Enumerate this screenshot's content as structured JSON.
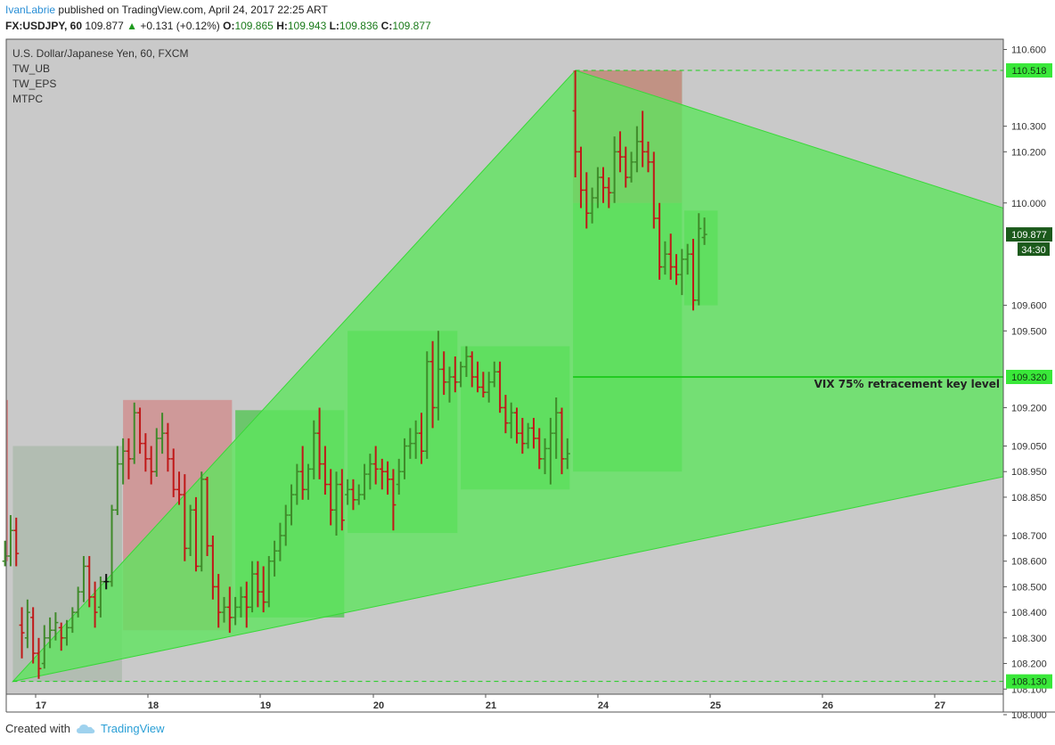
{
  "header": {
    "author": "IvanLabrie",
    "published": "published on TradingView.com, April 24, 2017 22:25 ART",
    "symbol": "FX:USDJPY, 60",
    "last": "109.877",
    "change": "+0.131 (+0.12%)",
    "o_label": "O:",
    "o": "109.865",
    "h_label": "H:",
    "h": "109.943",
    "l_label": "L:",
    "l": "109.836",
    "c_label": "C:",
    "c": "109.877"
  },
  "legend": {
    "title": "U.S. Dollar/Japanese Yen, 60, FXCM",
    "indicators": [
      "TW_UB",
      "TW_EPS",
      "MTPC"
    ]
  },
  "footer": {
    "created_with": "Created with",
    "brand": "TradingView"
  },
  "colors": {
    "bg_plot": "#c9c9c9",
    "bull": "#3f8a2a",
    "bear": "#c01818",
    "neutral": "#111111",
    "triangle": "#5ce65c",
    "box_green": "#4cc44c",
    "box_red": "#d08888",
    "box_gray": "#a9b8a9",
    "level_green": "#22cc22"
  },
  "chart_data": {
    "type": "candlestick",
    "ylim": [
      108.08,
      110.64
    ],
    "y_ticks": [
      "110.600",
      "110.300",
      "110.200",
      "110.000",
      "109.600",
      "109.500",
      "109.200",
      "109.050",
      "108.950",
      "108.850",
      "108.700",
      "108.600",
      "108.500",
      "108.400",
      "108.300",
      "108.200",
      "108.100",
      "108.000"
    ],
    "x_ticks": [
      "17",
      "18",
      "19",
      "20",
      "21",
      "24",
      "25",
      "26",
      "27"
    ],
    "price_labels": [
      {
        "value": 110.518,
        "text": "110.518"
      },
      {
        "value": 109.877,
        "text": "109.877"
      },
      {
        "value": 109.32,
        "text": "109.320"
      },
      {
        "value": 108.13,
        "text": "108.130"
      }
    ],
    "countdown": "34:30",
    "key_level": {
      "value": 109.32,
      "label": "VIX 75% retracement key level"
    },
    "triangle": [
      {
        "day": 16.75,
        "price": 108.13
      },
      {
        "day": 21.75,
        "price": 110.518
      },
      {
        "day": 28.55,
        "price": 109.98
      },
      {
        "day": 28.55,
        "price": 108.93
      }
    ],
    "boxes": [
      {
        "d0": 16.75,
        "d1": 17.72,
        "p0": 108.13,
        "p1": 109.05,
        "color": "gray"
      },
      {
        "d0": 17.73,
        "d1": 18.7,
        "p0": 108.33,
        "p1": 109.23,
        "color": "red"
      },
      {
        "d0": 18.73,
        "d1": 19.7,
        "p0": 108.38,
        "p1": 109.19,
        "color": "green"
      },
      {
        "d0": 19.73,
        "d1": 20.7,
        "p0": 108.71,
        "p1": 109.5,
        "color": "green"
      },
      {
        "d0": 20.73,
        "d1": 21.7,
        "p0": 108.88,
        "p1": 109.44,
        "color": "green"
      },
      {
        "d0": 21.73,
        "d1": 22.7,
        "p0": 108.95,
        "p1": 110.518,
        "color": "green"
      },
      {
        "d0": 21.73,
        "d1": 22.7,
        "p0": 110.518,
        "p1": 110.518,
        "color": "red_top"
      },
      {
        "d0": 22.72,
        "d1": 23.02,
        "p0": 109.6,
        "p1": 109.97,
        "color": "green"
      }
    ],
    "bars": [
      [
        16.68,
        108.6,
        108.68,
        108.58,
        108.62
      ],
      [
        16.73,
        108.62,
        108.78,
        108.58,
        108.72
      ],
      [
        16.78,
        108.72,
        108.77,
        108.58,
        108.63
      ],
      [
        16.83,
        108.35,
        108.42,
        108.22,
        108.32
      ],
      [
        16.88,
        108.3,
        108.45,
        108.26,
        108.4
      ],
      [
        16.93,
        108.38,
        108.42,
        108.2,
        108.24
      ],
      [
        16.98,
        108.24,
        108.3,
        108.14,
        108.18
      ],
      [
        17.03,
        108.2,
        108.35,
        108.18,
        108.3
      ],
      [
        17.08,
        108.3,
        108.38,
        108.26,
        108.33
      ],
      [
        17.13,
        108.33,
        108.4,
        108.29,
        108.36
      ],
      [
        17.18,
        108.34,
        108.36,
        108.25,
        108.3
      ],
      [
        17.23,
        108.3,
        108.37,
        108.27,
        108.34
      ],
      [
        17.28,
        108.34,
        108.42,
        108.32,
        108.4
      ],
      [
        17.33,
        108.4,
        108.5,
        108.38,
        108.48
      ],
      [
        17.38,
        108.48,
        108.62,
        108.44,
        108.58
      ],
      [
        17.43,
        108.58,
        108.62,
        108.42,
        108.46
      ],
      [
        17.48,
        108.46,
        108.52,
        108.34,
        108.4
      ],
      [
        17.53,
        108.42,
        108.54,
        108.38,
        108.52
      ],
      [
        17.58,
        108.52,
        108.55,
        108.49,
        108.52
      ],
      [
        17.63,
        108.52,
        108.82,
        108.5,
        108.8
      ],
      [
        17.68,
        108.8,
        109.05,
        108.78,
        108.98
      ],
      [
        17.73,
        108.98,
        109.08,
        108.9,
        109.03
      ],
      [
        17.78,
        109.03,
        109.08,
        108.92,
        109.0
      ],
      [
        17.83,
        109.0,
        109.22,
        108.98,
        109.18
      ],
      [
        17.88,
        109.18,
        109.2,
        109.02,
        109.06
      ],
      [
        17.93,
        109.06,
        109.1,
        108.95,
        109.0
      ],
      [
        17.98,
        109.0,
        109.05,
        108.9,
        108.95
      ],
      [
        18.03,
        108.95,
        109.12,
        108.93,
        109.08
      ],
      [
        18.08,
        109.08,
        109.18,
        109.02,
        109.1
      ],
      [
        18.13,
        109.1,
        109.14,
        108.95,
        109.0
      ],
      [
        18.18,
        109.0,
        109.04,
        108.85,
        108.88
      ],
      [
        18.23,
        108.88,
        108.95,
        108.82,
        108.86
      ],
      [
        18.28,
        108.86,
        108.94,
        108.6,
        108.65
      ],
      [
        18.33,
        108.65,
        108.82,
        108.62,
        108.8
      ],
      [
        18.38,
        108.8,
        108.85,
        108.56,
        108.58
      ],
      [
        18.43,
        108.58,
        108.95,
        108.56,
        108.92
      ],
      [
        18.48,
        108.92,
        108.93,
        108.62,
        108.66
      ],
      [
        18.53,
        108.66,
        108.7,
        108.45,
        108.5
      ],
      [
        18.58,
        108.5,
        108.55,
        108.34,
        108.4
      ],
      [
        18.63,
        108.4,
        108.46,
        108.36,
        108.42
      ],
      [
        18.68,
        108.42,
        108.5,
        108.32,
        108.38
      ],
      [
        18.73,
        108.38,
        108.46,
        108.35,
        108.42
      ],
      [
        18.78,
        108.42,
        108.5,
        108.38,
        108.46
      ],
      [
        18.83,
        108.46,
        108.52,
        108.34,
        108.42
      ],
      [
        18.88,
        108.42,
        108.6,
        108.4,
        108.55
      ],
      [
        18.93,
        108.55,
        108.6,
        108.42,
        108.48
      ],
      [
        18.98,
        108.48,
        108.58,
        108.4,
        108.44
      ],
      [
        19.03,
        108.44,
        108.62,
        108.42,
        108.6
      ],
      [
        19.08,
        108.6,
        108.68,
        108.54,
        108.64
      ],
      [
        19.13,
        108.64,
        108.75,
        108.6,
        108.7
      ],
      [
        19.18,
        108.7,
        108.82,
        108.66,
        108.78
      ],
      [
        19.23,
        108.78,
        108.9,
        108.74,
        108.86
      ],
      [
        19.28,
        108.86,
        108.98,
        108.82,
        108.95
      ],
      [
        19.33,
        108.95,
        109.05,
        108.84,
        108.88
      ],
      [
        19.38,
        108.88,
        108.98,
        108.84,
        108.96
      ],
      [
        19.43,
        108.96,
        109.15,
        108.92,
        109.1
      ],
      [
        19.48,
        109.1,
        109.2,
        108.92,
        108.98
      ],
      [
        19.53,
        108.98,
        109.05,
        108.86,
        108.9
      ],
      [
        19.58,
        108.9,
        108.96,
        108.74,
        108.8
      ],
      [
        19.63,
        108.8,
        108.95,
        108.7,
        108.9
      ],
      [
        19.68,
        108.9,
        108.96,
        108.72,
        108.76
      ],
      [
        19.73,
        108.86,
        108.92,
        108.82,
        108.88
      ],
      [
        19.78,
        108.88,
        108.92,
        108.8,
        108.84
      ],
      [
        19.83,
        108.84,
        108.9,
        108.82,
        108.86
      ],
      [
        19.88,
        108.86,
        108.98,
        108.84,
        108.94
      ],
      [
        19.93,
        108.94,
        109.02,
        108.88,
        108.98
      ],
      [
        19.98,
        108.98,
        109.05,
        108.9,
        108.96
      ],
      [
        20.03,
        108.96,
        109.0,
        108.88,
        108.95
      ],
      [
        20.08,
        108.95,
        108.99,
        108.86,
        108.92
      ],
      [
        20.13,
        108.92,
        108.96,
        108.72,
        108.82
      ],
      [
        20.18,
        108.9,
        109.0,
        108.86,
        108.95
      ],
      [
        20.23,
        108.95,
        109.08,
        108.92,
        109.05
      ],
      [
        20.28,
        109.05,
        109.12,
        109.0,
        109.06
      ],
      [
        20.33,
        109.06,
        109.15,
        109.0,
        109.1
      ],
      [
        20.38,
        109.1,
        109.18,
        108.98,
        109.03
      ],
      [
        20.43,
        109.03,
        109.42,
        109.0,
        109.38
      ],
      [
        20.48,
        109.38,
        109.46,
        109.12,
        109.2
      ],
      [
        20.53,
        109.2,
        109.5,
        109.15,
        109.35
      ],
      [
        20.58,
        109.35,
        109.42,
        109.25,
        109.3
      ],
      [
        20.63,
        109.3,
        109.36,
        109.22,
        109.32
      ],
      [
        20.68,
        109.32,
        109.4,
        109.26,
        109.3
      ],
      [
        20.73,
        109.3,
        109.38,
        109.28,
        109.36
      ],
      [
        20.78,
        109.36,
        109.44,
        109.32,
        109.4
      ],
      [
        20.83,
        109.4,
        109.42,
        109.28,
        109.32
      ],
      [
        20.88,
        109.32,
        109.38,
        109.26,
        109.28
      ],
      [
        20.93,
        109.28,
        109.34,
        109.24,
        109.26
      ],
      [
        20.98,
        109.26,
        109.34,
        109.22,
        109.3
      ],
      [
        21.03,
        109.3,
        109.38,
        109.28,
        109.34
      ],
      [
        21.08,
        109.34,
        109.38,
        109.18,
        109.2
      ],
      [
        21.13,
        109.2,
        109.25,
        109.1,
        109.14
      ],
      [
        21.18,
        109.14,
        109.22,
        109.08,
        109.18
      ],
      [
        21.23,
        109.18,
        109.2,
        109.06,
        109.1
      ],
      [
        21.28,
        109.1,
        109.16,
        109.02,
        109.06
      ],
      [
        21.33,
        109.06,
        109.14,
        109.04,
        109.12
      ],
      [
        21.38,
        109.12,
        109.16,
        109.04,
        109.08
      ],
      [
        21.43,
        109.08,
        109.12,
        108.96,
        109.0
      ],
      [
        21.48,
        109.0,
        109.08,
        108.94,
        109.04
      ],
      [
        21.53,
        109.04,
        109.16,
        108.9,
        109.1
      ],
      [
        21.58,
        109.1,
        109.24,
        109.0,
        109.18
      ],
      [
        21.63,
        109.18,
        109.2,
        108.94,
        109.0
      ],
      [
        21.68,
        109.0,
        109.08,
        108.96,
        109.02
      ],
      [
        21.75,
        110.36,
        110.518,
        110.1,
        110.2
      ],
      [
        21.8,
        110.2,
        110.22,
        109.98,
        110.05
      ],
      [
        21.85,
        110.05,
        110.12,
        109.9,
        109.96
      ],
      [
        21.9,
        109.96,
        110.06,
        109.92,
        110.02
      ],
      [
        21.95,
        110.02,
        110.14,
        109.98,
        110.1
      ],
      [
        22.0,
        110.1,
        110.14,
        110.0,
        110.06
      ],
      [
        22.05,
        110.06,
        110.1,
        109.98,
        110.04
      ],
      [
        22.1,
        110.04,
        110.26,
        110.0,
        110.2
      ],
      [
        22.15,
        110.2,
        110.28,
        110.12,
        110.18
      ],
      [
        22.2,
        110.18,
        110.22,
        110.06,
        110.1
      ],
      [
        22.25,
        110.1,
        110.2,
        110.08,
        110.16
      ],
      [
        22.3,
        110.16,
        110.3,
        110.12,
        110.24
      ],
      [
        22.35,
        110.24,
        110.36,
        110.14,
        110.2
      ],
      [
        22.4,
        110.2,
        110.24,
        110.12,
        110.16
      ],
      [
        22.45,
        110.16,
        110.2,
        109.9,
        109.94
      ],
      [
        22.5,
        109.94,
        110.0,
        109.7,
        109.75
      ],
      [
        22.55,
        109.75,
        109.85,
        109.72,
        109.8
      ],
      [
        22.6,
        109.8,
        109.88,
        109.7,
        109.75
      ],
      [
        22.65,
        109.75,
        109.8,
        109.68,
        109.72
      ],
      [
        22.7,
        109.72,
        109.82,
        109.64,
        109.78
      ],
      [
        22.75,
        109.78,
        109.84,
        109.72,
        109.8
      ],
      [
        22.8,
        109.8,
        109.86,
        109.58,
        109.62
      ],
      [
        22.85,
        109.62,
        109.96,
        109.6,
        109.9
      ],
      [
        22.9,
        109.865,
        109.943,
        109.836,
        109.877
      ]
    ]
  }
}
